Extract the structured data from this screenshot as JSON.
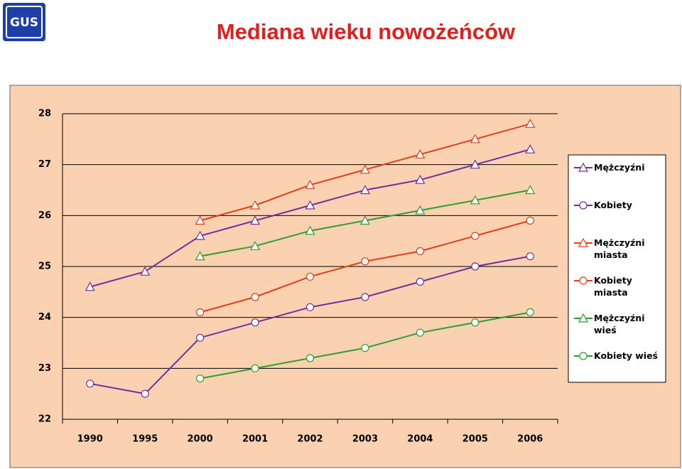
{
  "logo_text": "GUS",
  "chart_data": {
    "type": "line",
    "title": "Mediana wieku nowożeńców",
    "categories": [
      "1990",
      "1995",
      "2000",
      "2001",
      "2002",
      "2003",
      "2004",
      "2005",
      "2006"
    ],
    "ylim": [
      22,
      28
    ],
    "yticks": [
      22,
      23,
      24,
      25,
      26,
      27,
      28
    ],
    "grid": true,
    "legend": "right",
    "series": [
      {
        "name": "Mężczyźni",
        "color": "#7030a0",
        "marker": "triangle",
        "values": [
          24.6,
          24.9,
          25.6,
          25.9,
          26.2,
          26.5,
          26.7,
          27.0,
          27.3
        ]
      },
      {
        "name": "Kobiety",
        "color": "#7030a0",
        "marker": "circle",
        "values": [
          22.7,
          22.5,
          23.6,
          23.9,
          24.2,
          24.4,
          24.7,
          25.0,
          25.2
        ]
      },
      {
        "name": "Mężczyźni miasta",
        "color": "#e0401c",
        "marker": "triangle",
        "values": [
          null,
          null,
          25.9,
          26.2,
          26.6,
          26.9,
          27.2,
          27.5,
          27.8
        ]
      },
      {
        "name": "Kobiety miasta",
        "color": "#e0401c",
        "marker": "circle",
        "values": [
          null,
          null,
          24.1,
          24.4,
          24.8,
          25.1,
          25.3,
          25.6,
          25.9
        ]
      },
      {
        "name": "Mężczyźni wieś",
        "color": "#2e9e2e",
        "marker": "triangle",
        "values": [
          null,
          null,
          25.2,
          25.4,
          25.7,
          25.9,
          26.1,
          26.3,
          26.5
        ]
      },
      {
        "name": "Kobiety wieś",
        "color": "#2e9e2e",
        "marker": "circle",
        "values": [
          null,
          null,
          22.8,
          23.0,
          23.2,
          23.4,
          23.7,
          23.9,
          24.1
        ]
      }
    ]
  }
}
